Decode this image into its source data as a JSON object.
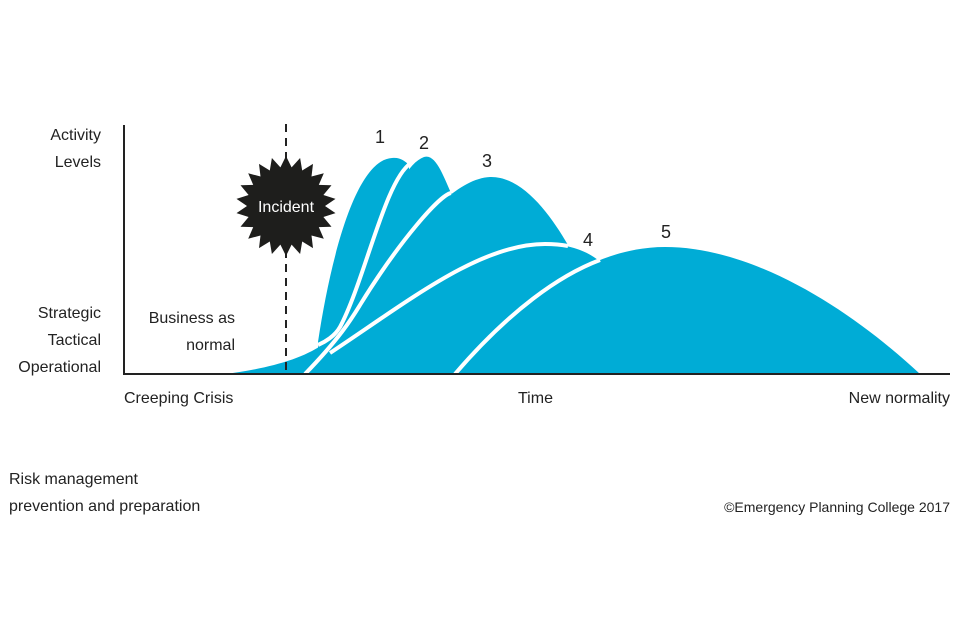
{
  "y_axis": {
    "top_label": [
      "Activity",
      "Levels"
    ],
    "levels": [
      "Strategic",
      "Tactical",
      "Operational"
    ]
  },
  "x_axis": {
    "start": "Creeping Crisis",
    "middle": "Time",
    "end": "New normality"
  },
  "business_as_normal": [
    "Business as",
    "normal"
  ],
  "incident": "Incident",
  "phases": [
    "1",
    "2",
    "3",
    "4",
    "5"
  ],
  "footer_left": [
    "Risk management",
    "prevention and preparation"
  ],
  "copyright": "©Emergency Planning College 2017",
  "colors": {
    "curve_fill": "#00acd6",
    "separator": "#ffffff",
    "incident": "#1e1e1c",
    "axis": "#222222"
  }
}
